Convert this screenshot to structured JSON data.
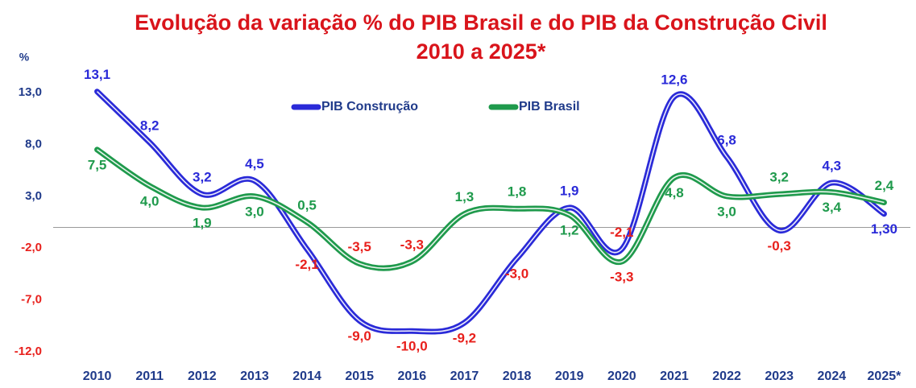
{
  "chart_data": {
    "type": "line",
    "title": "Evolução da variação % do PIB Brasil e do PIB  da Construção Civil",
    "subtitle": "2010 a 2025*",
    "y_label": "%",
    "categories": [
      "2010",
      "2011",
      "2012",
      "2013",
      "2014",
      "2015",
      "2016",
      "2017",
      "2018",
      "2019",
      "2020",
      "2021",
      "2022",
      "2023",
      "2024",
      "2025*"
    ],
    "series": [
      {
        "name": "PIB Construção",
        "color": "#2a2ad8",
        "values": [
          13.1,
          8.2,
          3.2,
          4.5,
          -2.1,
          -9.0,
          -10.0,
          -9.2,
          -3.0,
          1.9,
          -2.1,
          12.6,
          6.8,
          -0.3,
          4.3,
          1.3
        ],
        "value_labels": [
          "13,1",
          "8,2",
          "3,2",
          "4,5",
          "-2,1",
          "-9,0",
          "-10,0",
          "-9,2",
          "-3,0",
          "1,9",
          "-2,1",
          "12,6",
          "6,8",
          "-0,3",
          "4,3",
          "1,30"
        ]
      },
      {
        "name": "PIB Brasil",
        "color": "#1f9a4c",
        "values": [
          7.5,
          4.0,
          1.9,
          3.0,
          0.5,
          -3.5,
          -3.3,
          1.3,
          1.8,
          1.2,
          -3.3,
          4.8,
          3.0,
          3.2,
          3.4,
          2.4
        ],
        "value_labels": [
          "7,5",
          "4,0",
          "1,9",
          "3,0",
          "0,5",
          "-3,5",
          "-3,3",
          "1,3",
          "1,8",
          "1,2",
          "-3,3",
          "4,8",
          "3,0",
          "3,2",
          "3,4",
          "2,4"
        ]
      }
    ],
    "negative_label_color": "#e8201c",
    "ylim": [
      -12,
      13
    ],
    "yticks": [
      {
        "value": 13,
        "label": "13,0"
      },
      {
        "value": 8,
        "label": "8,0"
      },
      {
        "value": 3,
        "label": "3,0"
      },
      {
        "value": -2,
        "label": "-2,0"
      },
      {
        "value": -7,
        "label": "-7,0"
      },
      {
        "value": -12,
        "label": "-12,0"
      }
    ],
    "grid": false
  }
}
